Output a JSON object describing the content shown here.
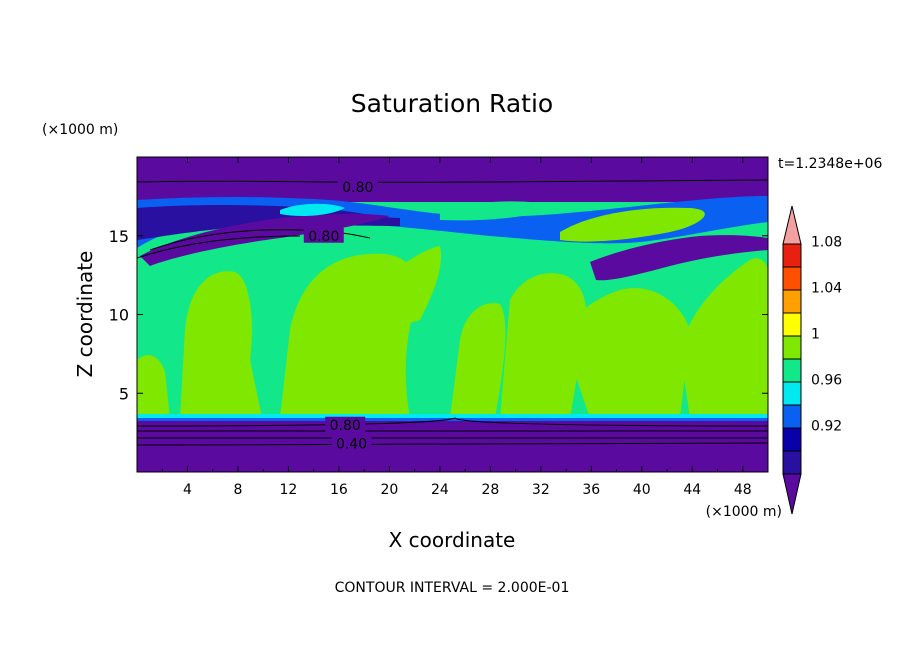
{
  "chart_data": {
    "type": "heatmap",
    "title": "Saturation Ratio",
    "xlabel": "X coordinate",
    "ylabel": "Z coordinate",
    "x_unit": "(×1000 m)",
    "y_unit": "(×1000 m)",
    "time_label": "t=1.2348e+06",
    "footer": "CONTOUR INTERVAL = 2.000E-01",
    "xlim": [
      0,
      50
    ],
    "ylim": [
      0,
      20
    ],
    "x_ticks": [
      "4",
      "8",
      "12",
      "16",
      "20",
      "24",
      "28",
      "32",
      "36",
      "40",
      "44",
      "48"
    ],
    "y_ticks": [
      "5",
      "10",
      "15"
    ],
    "colorbar": {
      "labels": [
        "0.92",
        "0.96",
        "1",
        "1.04",
        "1.08"
      ],
      "levels": [
        0.92,
        0.96,
        1.0,
        1.04,
        1.08
      ],
      "colors": [
        "#5b0aa0",
        "#2a10a0",
        "#0a00aa",
        "#0a60f0",
        "#00e8f0",
        "#12e88a",
        "#80e800",
        "#ffff00",
        "#ffa000",
        "#ff5000",
        "#e82010",
        "#f4a0a0"
      ]
    },
    "contour_labels": [
      {
        "text": "0.80",
        "x": 17.5,
        "y": 18.1
      },
      {
        "text": "0.80",
        "x": 14.8,
        "y": 15.0
      },
      {
        "text": "0.80",
        "x": 16.5,
        "y": 3.0
      },
      {
        "text": "0.40",
        "x": 17.0,
        "y": 1.8
      }
    ]
  }
}
